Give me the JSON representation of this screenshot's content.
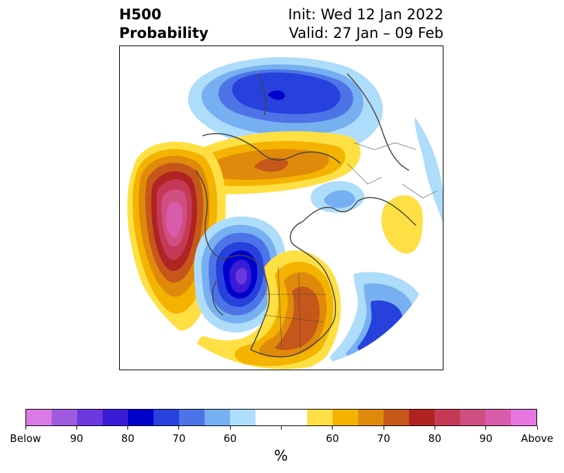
{
  "title": {
    "left_line1": "H500",
    "left_line2": "Probability",
    "right_line1": "Init: Wed 12 Jan 2022",
    "right_line2": "Valid: 27 Jan – 09 Feb"
  },
  "map": {
    "projection": "north-polar-stereographic",
    "features": [
      "Bering Sea / Alaska below-normal height low",
      "North Pacific above-normal ridge",
      "Western Canada below-normal trough",
      "Eastern US above-normal ridge",
      "Arctic / Greenland above-normal band",
      "Northern Russia below-normal low",
      "Western Atlantic below-normal trough",
      "Middle East above-normal ridge"
    ],
    "border_color": "#444444"
  },
  "colorbar": {
    "colors": [
      "#d97ae6",
      "#9f5be0",
      "#6a38dc",
      "#3a1cd6",
      "#0000cd",
      "#2741dc",
      "#4d74e6",
      "#76b0f0",
      "#aedcfb",
      "#ffffff",
      "#ffffff",
      "#fee044",
      "#f3b300",
      "#e08a0c",
      "#c5571a",
      "#b02323",
      "#c43a56",
      "#cf4f82",
      "#d95cac",
      "#e676e0"
    ],
    "tick_labels": [
      "Below",
      "90",
      "80",
      "70",
      "60",
      "",
      "60",
      "70",
      "80",
      "90",
      "Above"
    ],
    "units": "%"
  }
}
